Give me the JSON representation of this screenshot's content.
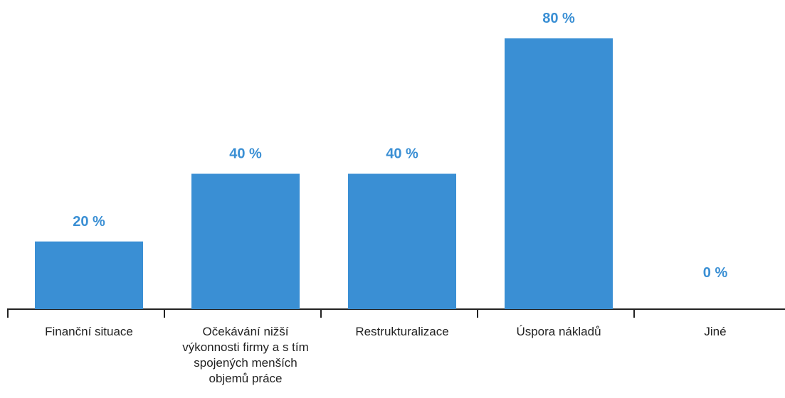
{
  "chart_data": {
    "type": "bar",
    "categories": [
      "Finanční situace",
      "Očekávání nižší výkonnosti firmy a s tím spojených menších objemů práce",
      "Restrukturalizace",
      "Úspora nákladů",
      "Jiné"
    ],
    "values": [
      20,
      40,
      40,
      80,
      0
    ],
    "value_labels": [
      "20 %",
      "40 %",
      "40 %",
      "80 %",
      "0 %"
    ],
    "color": "#3a8fd4",
    "ylim": [
      0,
      80
    ]
  }
}
